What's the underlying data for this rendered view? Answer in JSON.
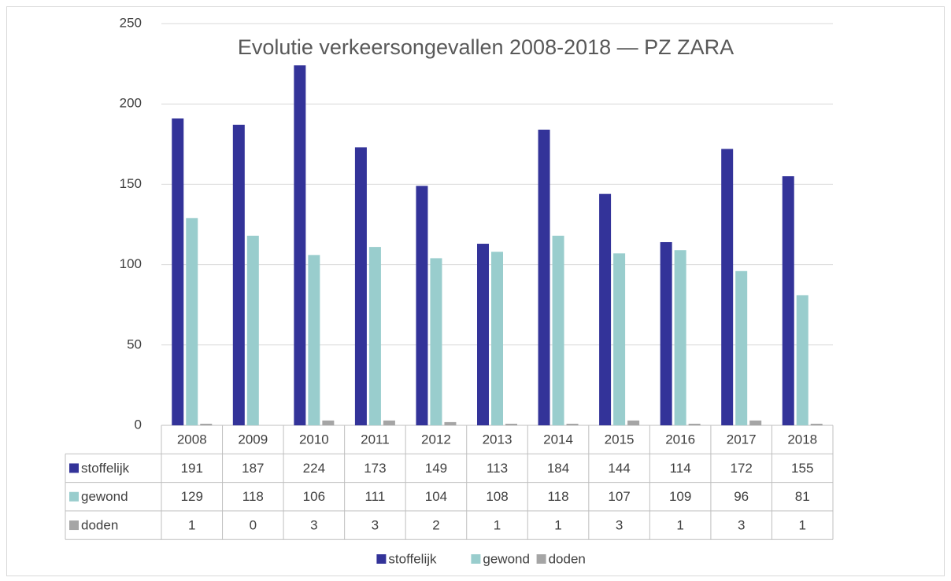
{
  "chart_data": {
    "type": "bar",
    "title": "Evolutie verkeersongevallen 2008-2018 — PZ ZARA",
    "categories": [
      "2008",
      "2009",
      "2010",
      "2011",
      "2012",
      "2013",
      "2014",
      "2015",
      "2016",
      "2017",
      "2018"
    ],
    "series": [
      {
        "name": "stoffelijk",
        "color": "#333399",
        "values": [
          191,
          187,
          224,
          173,
          149,
          113,
          184,
          144,
          114,
          172,
          155
        ]
      },
      {
        "name": "gewond",
        "color": "#99cdcd",
        "values": [
          129,
          118,
          106,
          111,
          104,
          108,
          118,
          107,
          109,
          96,
          81
        ]
      },
      {
        "name": "doden",
        "color": "#a5a5a5",
        "values": [
          1,
          0,
          3,
          3,
          2,
          1,
          1,
          3,
          1,
          3,
          1
        ]
      }
    ],
    "ylim": [
      0,
      250
    ],
    "yticks": [
      0,
      50,
      100,
      150,
      200,
      250
    ],
    "grid": true,
    "legend": "bottom"
  }
}
